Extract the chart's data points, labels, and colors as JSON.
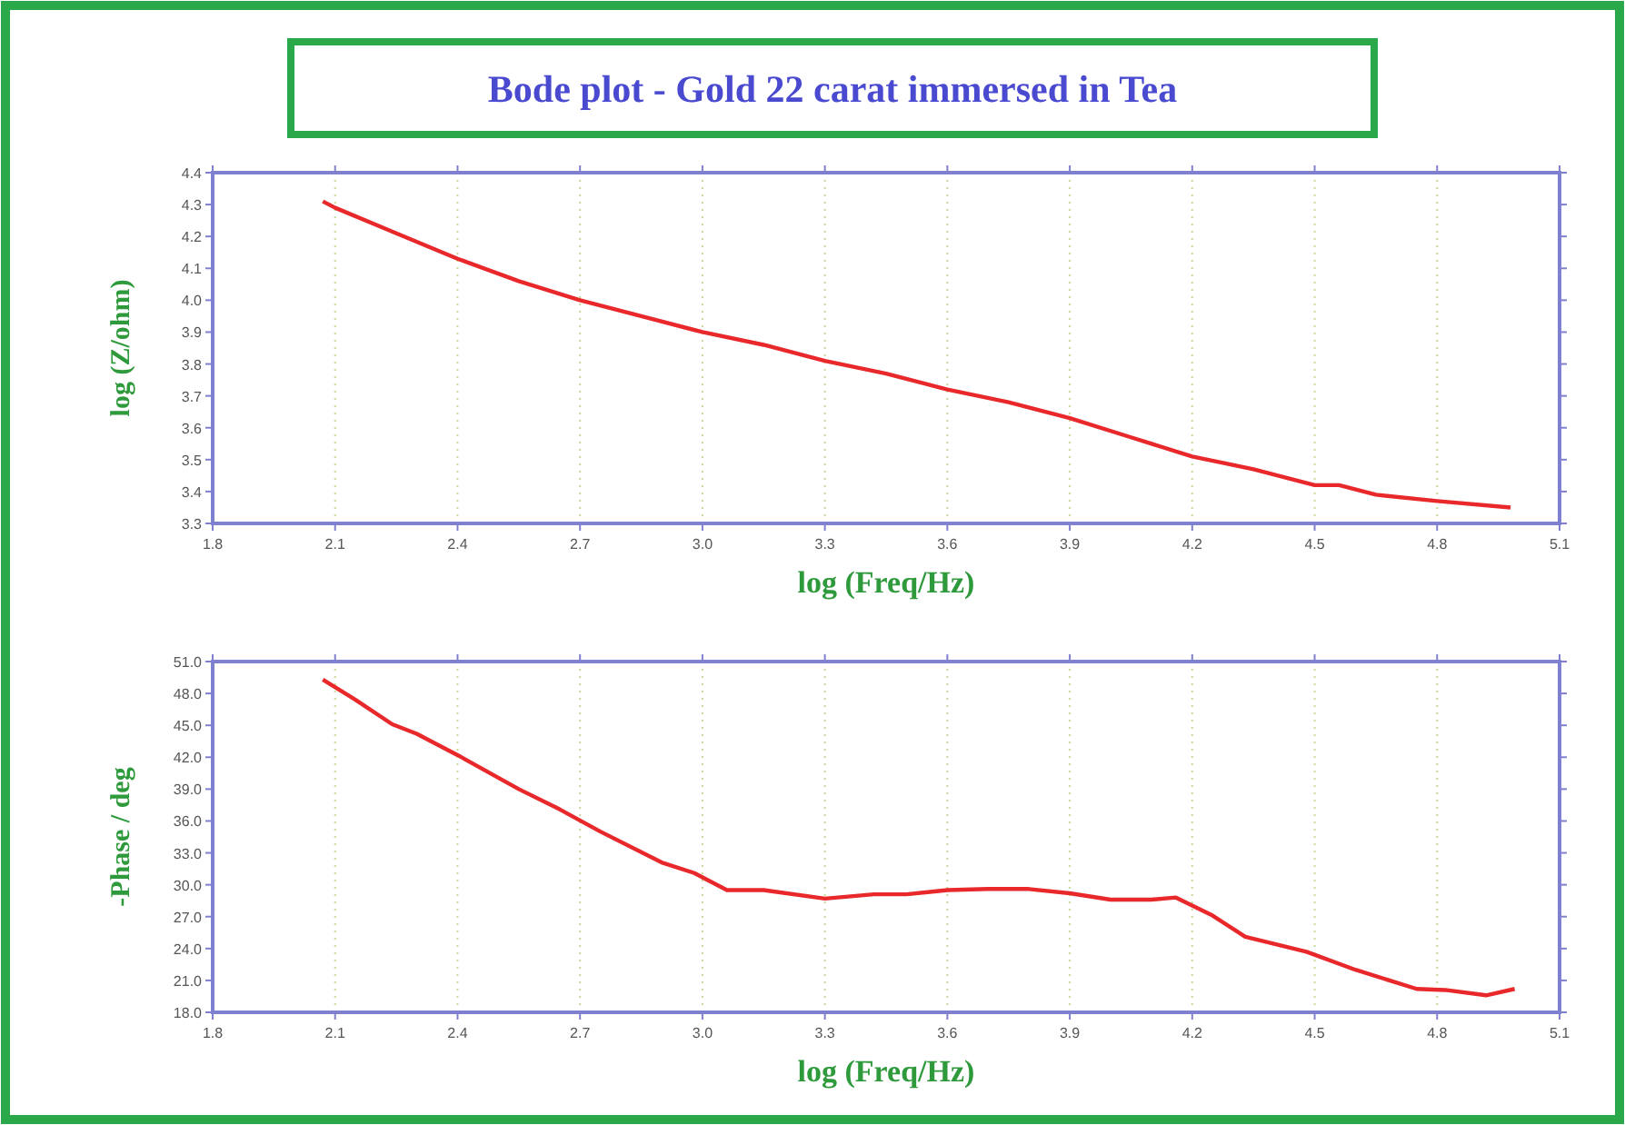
{
  "chart_data": [
    {
      "type": "line",
      "title": "Bode plot - Gold 22 carat immersed in Tea",
      "xlabel": "log (Freq/Hz)",
      "ylabel": "log (Z/ohm)",
      "xlim": [
        1.8,
        5.1
      ],
      "xticks": [
        {
          "value": 1.8,
          "label": "1.8"
        },
        {
          "value": 2.1,
          "label": "2.1"
        },
        {
          "value": 2.4,
          "label": "2.4"
        },
        {
          "value": 2.7,
          "label": "2.7"
        },
        {
          "value": 3.0,
          "label": "3.0"
        },
        {
          "value": 3.3,
          "label": "3.3"
        },
        {
          "value": 3.6,
          "label": "3.6"
        },
        {
          "value": 3.9,
          "label": "3.9"
        },
        {
          "value": 4.2,
          "label": "4.2"
        },
        {
          "value": 4.5,
          "label": "4.5"
        },
        {
          "value": 4.8,
          "label": "4.8"
        },
        {
          "value": 5.1,
          "label": "5.1"
        }
      ],
      "ylim": [
        3.3,
        4.4
      ],
      "yticks": [
        3.3,
        3.4,
        3.5,
        3.6,
        3.7,
        3.8,
        3.9,
        {
          "value": 4.0,
          "label": "4.0"
        },
        4.1,
        4.2,
        4.3,
        4.4
      ],
      "grid": "x",
      "marker": "none",
      "line_style": "solid",
      "series": [
        {
          "color": "#e8282a",
          "x": [
            2.07,
            2.1,
            2.25,
            2.4,
            2.55,
            2.7,
            2.85,
            3.0,
            3.15,
            3.3,
            3.45,
            3.6,
            3.75,
            3.9,
            4.05,
            4.2,
            4.35,
            4.5,
            4.56,
            4.65,
            4.8,
            4.98
          ],
          "values": [
            4.31,
            4.29,
            4.21,
            4.13,
            4.06,
            4.0,
            3.95,
            3.9,
            3.86,
            3.81,
            3.77,
            3.72,
            3.68,
            3.63,
            3.57,
            3.51,
            3.47,
            3.42,
            3.42,
            3.39,
            3.37,
            3.35
          ]
        }
      ]
    },
    {
      "type": "line",
      "xlabel": "log (Freq/Hz)",
      "ylabel": "-Phase / deg",
      "xlim": [
        1.8,
        5.1
      ],
      "xticks": [
        {
          "value": 1.8,
          "label": "1.8"
        },
        {
          "value": 2.1,
          "label": "2.1"
        },
        {
          "value": 2.4,
          "label": "2.4"
        },
        {
          "value": 2.7,
          "label": "2.7"
        },
        {
          "value": 3.0,
          "label": "3.0"
        },
        {
          "value": 3.3,
          "label": "3.3"
        },
        {
          "value": 3.6,
          "label": "3.6"
        },
        {
          "value": 3.9,
          "label": "3.9"
        },
        {
          "value": 4.2,
          "label": "4.2"
        },
        {
          "value": 4.5,
          "label": "4.5"
        },
        {
          "value": 4.8,
          "label": "4.8"
        },
        {
          "value": 5.1,
          "label": "5.1"
        }
      ],
      "ylim": [
        18,
        51
      ],
      "yticks": [
        {
          "value": 18,
          "label": "18.0"
        },
        {
          "value": 21,
          "label": "21.0"
        },
        {
          "value": 24,
          "label": "24.0"
        },
        {
          "value": 27,
          "label": "27.0"
        },
        {
          "value": 30,
          "label": "30.0"
        },
        {
          "value": 33,
          "label": "33.0"
        },
        {
          "value": 36,
          "label": "36.0"
        },
        {
          "value": 39,
          "label": "39.0"
        },
        {
          "value": 42,
          "label": "42.0"
        },
        {
          "value": 45,
          "label": "45.0"
        },
        {
          "value": 48,
          "label": "48.0"
        },
        {
          "value": 51,
          "label": "51.0"
        }
      ],
      "grid": "x",
      "marker": "none",
      "line_style": "solid",
      "series": [
        {
          "color": "#e8282a",
          "x": [
            2.07,
            2.15,
            2.24,
            2.3,
            2.4,
            2.55,
            2.65,
            2.75,
            2.9,
            2.98,
            3.06,
            3.15,
            3.3,
            3.42,
            3.5,
            3.6,
            3.7,
            3.8,
            3.9,
            4.0,
            4.1,
            4.16,
            4.25,
            4.33,
            4.48,
            4.6,
            4.75,
            4.82,
            4.92,
            4.99
          ],
          "values": [
            49.3,
            47.4,
            45.1,
            44.2,
            42.2,
            39.0,
            37.1,
            35.0,
            32.1,
            31.1,
            29.5,
            29.5,
            28.7,
            29.1,
            29.1,
            29.5,
            29.6,
            29.6,
            29.2,
            28.6,
            28.6,
            28.8,
            27.1,
            25.1,
            23.7,
            22.0,
            20.2,
            20.1,
            19.6,
            20.2
          ]
        }
      ]
    }
  ]
}
